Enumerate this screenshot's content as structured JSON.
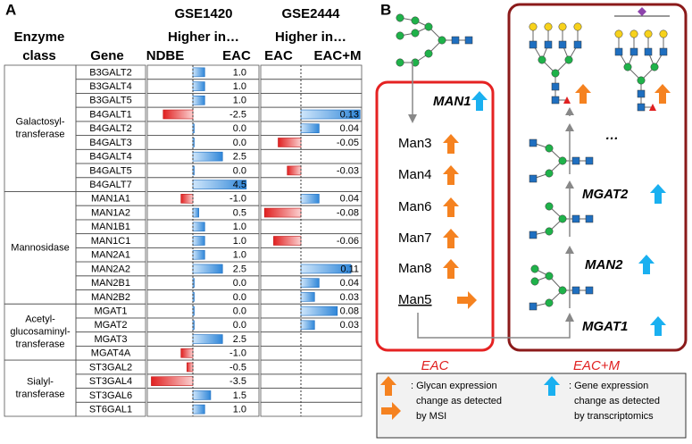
{
  "panel_a": {
    "label": "A",
    "datasets": [
      {
        "title": "GSE1420",
        "subtitle": "Higher in…",
        "left": "NDBE",
        "right": "EAC"
      },
      {
        "title": "GSE2444",
        "subtitle": "Higher in…",
        "left": "EAC",
        "right": "EAC+M"
      }
    ],
    "class_header": [
      "Enzyme",
      "class"
    ],
    "gene_header": "Gene",
    "groups": [
      {
        "lines": [
          "Galactosyl-",
          "transferase"
        ],
        "rows": [
          {
            "gene": "B3GALT2",
            "gse1420": 1.0,
            "gse1420_label": "1.0",
            "gse2444": null
          },
          {
            "gene": "B3GALT4",
            "gse1420": 1.0,
            "gse1420_label": "1.0",
            "gse2444": null
          },
          {
            "gene": "B3GALT5",
            "gse1420": 1.0,
            "gse1420_label": "1.0",
            "gse2444": null
          },
          {
            "gene": "B4GALT1",
            "gse1420": -2.5,
            "gse1420_label": "-2.5",
            "gse2444": 0.13
          },
          {
            "gene": "B4GALT2",
            "gse1420": 0.0,
            "gse1420_label": "0.0",
            "gse2444": 0.04
          },
          {
            "gene": "B4GALT3",
            "gse1420": 0.0,
            "gse1420_label": "0.0",
            "gse2444": -0.05
          },
          {
            "gene": "B4GALT4",
            "gse1420": 2.5,
            "gse1420_label": "2.5",
            "gse2444": null
          },
          {
            "gene": "B4GALT5",
            "gse1420": 0.0,
            "gse1420_label": "0.0",
            "gse2444": -0.03
          },
          {
            "gene": "B4GALT7",
            "gse1420": 4.5,
            "gse1420_label": "4.5",
            "gse2444": null
          }
        ]
      },
      {
        "lines": [
          "Mannosidase"
        ],
        "rows": [
          {
            "gene": "MAN1A1",
            "gse1420": -1.0,
            "gse1420_label": "-1.0",
            "gse2444": 0.04
          },
          {
            "gene": "MAN1A2",
            "gse1420": 0.5,
            "gse1420_label": "0.5",
            "gse2444": -0.08
          },
          {
            "gene": "MAN1B1",
            "gse1420": 1.0,
            "gse1420_label": "1.0",
            "gse2444": null
          },
          {
            "gene": "MAN1C1",
            "gse1420": 1.0,
            "gse1420_label": "1.0",
            "gse2444": -0.06
          },
          {
            "gene": "MAN2A1",
            "gse1420": 1.0,
            "gse1420_label": "1.0",
            "gse2444": null
          },
          {
            "gene": "MAN2A2",
            "gse1420": 2.5,
            "gse1420_label": "2.5",
            "gse2444": 0.11
          },
          {
            "gene": "MAN2B1",
            "gse1420": 0.0,
            "gse1420_label": "0.0",
            "gse2444": 0.04
          },
          {
            "gene": "MAN2B2",
            "gse1420": 0.0,
            "gse1420_label": "0.0",
            "gse2444": 0.03
          }
        ]
      },
      {
        "lines": [
          "Acetyl-",
          "glucosaminyl-",
          "transferase"
        ],
        "rows": [
          {
            "gene": "MGAT1",
            "gse1420": 0.0,
            "gse1420_label": "0.0",
            "gse2444": 0.08
          },
          {
            "gene": "MGAT2",
            "gse1420": 0.0,
            "gse1420_label": "0.0",
            "gse2444": 0.03
          },
          {
            "gene": "MGAT3",
            "gse1420": 2.5,
            "gse1420_label": "2.5",
            "gse2444": null
          },
          {
            "gene": "MGAT4A",
            "gse1420": -1.0,
            "gse1420_label": "-1.0",
            "gse2444": null
          }
        ]
      },
      {
        "lines": [
          "Sialyl-",
          "transferase"
        ],
        "rows": [
          {
            "gene": "ST3GAL2",
            "gse1420": -0.5,
            "gse1420_label": "-0.5",
            "gse2444": null
          },
          {
            "gene": "ST3GAL4",
            "gse1420": -3.5,
            "gse1420_label": "-3.5",
            "gse2444": null
          },
          {
            "gene": "ST3GAL6",
            "gse1420": 1.5,
            "gse1420_label": "1.5",
            "gse2444": null
          },
          {
            "gene": "ST6GAL1",
            "gse1420": 1.0,
            "gse1420_label": "1.0",
            "gse2444": null
          }
        ]
      }
    ]
  },
  "panel_b": {
    "label": "B",
    "man1": "MAN1",
    "man_list": [
      "Man3",
      "Man4",
      "Man6",
      "Man7",
      "Man8"
    ],
    "man5": "Man5",
    "steps": [
      "MGAT1",
      "MAN2",
      "MGAT2"
    ],
    "ellipsis": "…",
    "eac": "EAC",
    "eacm": "EAC+M",
    "legend": [
      [
        ": Glycan expression",
        "change as detected",
        "by MSI"
      ],
      [
        ": Gene expression",
        "change as detected",
        "by transcriptomics"
      ]
    ]
  }
}
